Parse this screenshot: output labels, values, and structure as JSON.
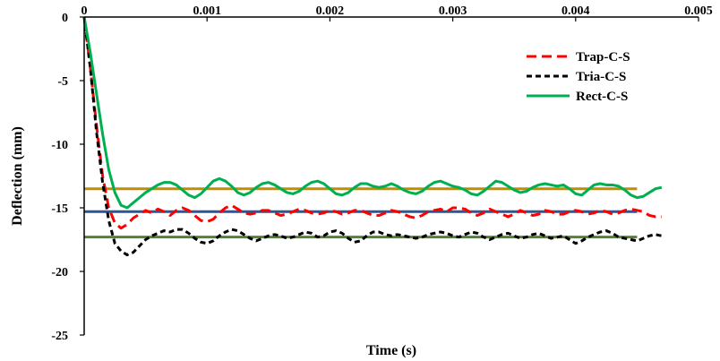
{
  "chart_data": {
    "type": "line",
    "title": "",
    "xlabel": "Time (s)",
    "ylabel": "Deflection (mm)",
    "xlim": [
      0,
      0.005
    ],
    "ylim": [
      -25,
      0
    ],
    "x_ticks": [
      0,
      0.001,
      0.002,
      0.003,
      0.004,
      0.005
    ],
    "x_tick_labels": [
      "0",
      "0.001",
      "0.002",
      "0.003",
      "0.004",
      "0.005"
    ],
    "y_ticks": [
      0,
      -5,
      -10,
      -15,
      -20,
      -25
    ],
    "y_tick_labels": [
      "0",
      "-5",
      "-10",
      "-15",
      "-20",
      "-25"
    ],
    "x_axis_position": "top",
    "grid": false,
    "legend_position": "top-right",
    "series": [
      {
        "name": "Trap-C-S",
        "color": "#ff0000",
        "style": "dashed",
        "points": [
          [
            0,
            0
          ],
          [
            5e-05,
            -4
          ],
          [
            0.0001,
            -8.5
          ],
          [
            0.00015,
            -12.5
          ],
          [
            0.0002,
            -15
          ],
          [
            0.00025,
            -16.2
          ],
          [
            0.0003,
            -16.6
          ],
          [
            0.00035,
            -16.3
          ],
          [
            0.0004,
            -15.8
          ],
          [
            0.00045,
            -15.5
          ],
          [
            0.0005,
            -15.2
          ],
          [
            0.00055,
            -15.4
          ],
          [
            0.0006,
            -15.1
          ],
          [
            0.00065,
            -15.3
          ],
          [
            0.0007,
            -15.6
          ],
          [
            0.00075,
            -15.2
          ],
          [
            0.0008,
            -15.0
          ],
          [
            0.00085,
            -15.2
          ],
          [
            0.0009,
            -15.6
          ],
          [
            0.00095,
            -16.0
          ],
          [
            0.001,
            -16.1
          ],
          [
            0.00105,
            -15.9
          ],
          [
            0.0011,
            -15.4
          ],
          [
            0.00115,
            -15.0
          ],
          [
            0.0012,
            -14.8
          ],
          [
            0.00125,
            -15.1
          ],
          [
            0.0013,
            -15.4
          ],
          [
            0.00135,
            -15.5
          ],
          [
            0.0014,
            -15.4
          ],
          [
            0.00145,
            -15.2
          ],
          [
            0.0015,
            -15.2
          ],
          [
            0.00155,
            -15.4
          ],
          [
            0.0016,
            -15.6
          ],
          [
            0.00165,
            -15.5
          ],
          [
            0.0017,
            -15.3
          ],
          [
            0.00175,
            -15.1
          ],
          [
            0.0018,
            -15.2
          ],
          [
            0.00185,
            -15.4
          ],
          [
            0.0019,
            -15.5
          ],
          [
            0.00195,
            -15.4
          ],
          [
            0.002,
            -15.2
          ],
          [
            0.00205,
            -15.3
          ],
          [
            0.0021,
            -15.5
          ],
          [
            0.00215,
            -15.4
          ],
          [
            0.0022,
            -15.2
          ],
          [
            0.00225,
            -15.2
          ],
          [
            0.0023,
            -15.4
          ],
          [
            0.00235,
            -15.6
          ],
          [
            0.0024,
            -15.6
          ],
          [
            0.00245,
            -15.4
          ],
          [
            0.0025,
            -15.2
          ],
          [
            0.00255,
            -15.3
          ],
          [
            0.0026,
            -15.5
          ],
          [
            0.00265,
            -15.7
          ],
          [
            0.0027,
            -15.8
          ],
          [
            0.00275,
            -15.6
          ],
          [
            0.0028,
            -15.3
          ],
          [
            0.00285,
            -15.2
          ],
          [
            0.0029,
            -15.1
          ],
          [
            0.00295,
            -15.3
          ],
          [
            0.003,
            -15.0
          ],
          [
            0.00305,
            -15.0
          ],
          [
            0.0031,
            -15.1
          ],
          [
            0.00315,
            -15.4
          ],
          [
            0.0032,
            -15.6
          ],
          [
            0.00325,
            -15.4
          ],
          [
            0.0033,
            -15.1
          ],
          [
            0.00335,
            -15.3
          ],
          [
            0.0034,
            -15.5
          ],
          [
            0.00345,
            -15.7
          ],
          [
            0.0035,
            -15.5
          ],
          [
            0.00355,
            -15.2
          ],
          [
            0.0036,
            -15.4
          ],
          [
            0.00365,
            -15.6
          ],
          [
            0.0037,
            -15.5
          ],
          [
            0.00375,
            -15.2
          ],
          [
            0.0038,
            -15.3
          ],
          [
            0.00385,
            -15.5
          ],
          [
            0.0039,
            -15.5
          ],
          [
            0.00395,
            -15.3
          ],
          [
            0.004,
            -15.2
          ],
          [
            0.00405,
            -15.3
          ],
          [
            0.0041,
            -15.5
          ],
          [
            0.00415,
            -15.4
          ],
          [
            0.0042,
            -15.2
          ],
          [
            0.00425,
            -15.3
          ],
          [
            0.0043,
            -15.5
          ],
          [
            0.00435,
            -15.4
          ],
          [
            0.0044,
            -15.2
          ],
          [
            0.00445,
            -15.1
          ],
          [
            0.0045,
            -15.2
          ],
          [
            0.00455,
            -15.3
          ],
          [
            0.0046,
            -15.6
          ],
          [
            0.00465,
            -15.7
          ],
          [
            0.0047,
            -15.7
          ]
        ]
      },
      {
        "name": "Tria-C-S",
        "color": "#000000",
        "style": "dashed",
        "points": [
          [
            0,
            0
          ],
          [
            5e-05,
            -4
          ],
          [
            0.0001,
            -9
          ],
          [
            0.00015,
            -13
          ],
          [
            0.0002,
            -16
          ],
          [
            0.00025,
            -17.8
          ],
          [
            0.0003,
            -18.4
          ],
          [
            0.00035,
            -18.7
          ],
          [
            0.0004,
            -18.5
          ],
          [
            0.00045,
            -18.0
          ],
          [
            0.0005,
            -17.5
          ],
          [
            0.00055,
            -17.2
          ],
          [
            0.0006,
            -17.0
          ],
          [
            0.00065,
            -16.8
          ],
          [
            0.0007,
            -16.9
          ],
          [
            0.00075,
            -16.7
          ],
          [
            0.0008,
            -16.7
          ],
          [
            0.00085,
            -17.0
          ],
          [
            0.0009,
            -17.4
          ],
          [
            0.00095,
            -17.7
          ],
          [
            0.001,
            -17.8
          ],
          [
            0.00105,
            -17.6
          ],
          [
            0.0011,
            -17.2
          ],
          [
            0.00115,
            -16.9
          ],
          [
            0.0012,
            -16.7
          ],
          [
            0.00125,
            -16.8
          ],
          [
            0.0013,
            -17.1
          ],
          [
            0.00135,
            -17.4
          ],
          [
            0.0014,
            -17.6
          ],
          [
            0.00145,
            -17.4
          ],
          [
            0.0015,
            -17.2
          ],
          [
            0.00155,
            -17.1
          ],
          [
            0.0016,
            -17.2
          ],
          [
            0.00165,
            -17.4
          ],
          [
            0.0017,
            -17.3
          ],
          [
            0.00175,
            -17.1
          ],
          [
            0.0018,
            -16.9
          ],
          [
            0.00185,
            -17.0
          ],
          [
            0.0019,
            -17.3
          ],
          [
            0.00195,
            -17.2
          ],
          [
            0.002,
            -16.9
          ],
          [
            0.00205,
            -16.8
          ],
          [
            0.0021,
            -17.0
          ],
          [
            0.00215,
            -17.4
          ],
          [
            0.0022,
            -17.7
          ],
          [
            0.00225,
            -17.6
          ],
          [
            0.0023,
            -17.2
          ],
          [
            0.00235,
            -16.9
          ],
          [
            0.0024,
            -16.9
          ],
          [
            0.00245,
            -17.1
          ],
          [
            0.0025,
            -17.2
          ],
          [
            0.00255,
            -17.1
          ],
          [
            0.0026,
            -17.2
          ],
          [
            0.00265,
            -17.3
          ],
          [
            0.0027,
            -17.4
          ],
          [
            0.00275,
            -17.3
          ],
          [
            0.0028,
            -17.1
          ],
          [
            0.00285,
            -17.0
          ],
          [
            0.0029,
            -16.9
          ],
          [
            0.00295,
            -17.0
          ],
          [
            0.003,
            -17.2
          ],
          [
            0.00305,
            -17.3
          ],
          [
            0.0031,
            -17.1
          ],
          [
            0.00315,
            -16.9
          ],
          [
            0.0032,
            -17.0
          ],
          [
            0.00325,
            -17.3
          ],
          [
            0.0033,
            -17.5
          ],
          [
            0.00335,
            -17.3
          ],
          [
            0.0034,
            -17.1
          ],
          [
            0.00345,
            -17.0
          ],
          [
            0.0035,
            -17.2
          ],
          [
            0.00355,
            -17.4
          ],
          [
            0.0036,
            -17.3
          ],
          [
            0.00365,
            -17.1
          ],
          [
            0.0037,
            -17.0
          ],
          [
            0.00375,
            -17.2
          ],
          [
            0.0038,
            -17.4
          ],
          [
            0.00385,
            -17.3
          ],
          [
            0.0039,
            -17.2
          ],
          [
            0.00395,
            -17.5
          ],
          [
            0.004,
            -17.8
          ],
          [
            0.00405,
            -17.6
          ],
          [
            0.0041,
            -17.3
          ],
          [
            0.00415,
            -17.1
          ],
          [
            0.0042,
            -16.9
          ],
          [
            0.00425,
            -16.8
          ],
          [
            0.0043,
            -17.0
          ],
          [
            0.00435,
            -17.3
          ],
          [
            0.0044,
            -17.4
          ],
          [
            0.00445,
            -17.5
          ],
          [
            0.0045,
            -17.6
          ],
          [
            0.00455,
            -17.4
          ],
          [
            0.0046,
            -17.2
          ],
          [
            0.00465,
            -17.1
          ],
          [
            0.0047,
            -17.2
          ]
        ]
      },
      {
        "name": "Rect-C-S",
        "color": "#00b050",
        "style": "solid",
        "points": [
          [
            0,
            0
          ],
          [
            5e-05,
            -2.8
          ],
          [
            0.0001,
            -6
          ],
          [
            0.00015,
            -9.2
          ],
          [
            0.0002,
            -12
          ],
          [
            0.00025,
            -13.8
          ],
          [
            0.0003,
            -14.8
          ],
          [
            0.00035,
            -15.0
          ],
          [
            0.0004,
            -14.6
          ],
          [
            0.00045,
            -14.2
          ],
          [
            0.0005,
            -13.8
          ],
          [
            0.00055,
            -13.5
          ],
          [
            0.0006,
            -13.2
          ],
          [
            0.00065,
            -13.0
          ],
          [
            0.0007,
            -13.0
          ],
          [
            0.00075,
            -13.2
          ],
          [
            0.0008,
            -13.6
          ],
          [
            0.00085,
            -14.0
          ],
          [
            0.0009,
            -14.2
          ],
          [
            0.00095,
            -13.9
          ],
          [
            0.001,
            -13.4
          ],
          [
            0.00105,
            -12.9
          ],
          [
            0.0011,
            -12.7
          ],
          [
            0.00115,
            -12.9
          ],
          [
            0.0012,
            -13.3
          ],
          [
            0.00125,
            -13.8
          ],
          [
            0.0013,
            -14.0
          ],
          [
            0.00135,
            -13.8
          ],
          [
            0.0014,
            -13.4
          ],
          [
            0.00145,
            -13.1
          ],
          [
            0.0015,
            -13.0
          ],
          [
            0.00155,
            -13.2
          ],
          [
            0.0016,
            -13.5
          ],
          [
            0.00165,
            -13.8
          ],
          [
            0.0017,
            -13.9
          ],
          [
            0.00175,
            -13.7
          ],
          [
            0.0018,
            -13.3
          ],
          [
            0.00185,
            -13.0
          ],
          [
            0.0019,
            -12.9
          ],
          [
            0.00195,
            -13.1
          ],
          [
            0.002,
            -13.5
          ],
          [
            0.00205,
            -13.9
          ],
          [
            0.0021,
            -14.0
          ],
          [
            0.00215,
            -13.8
          ],
          [
            0.0022,
            -13.4
          ],
          [
            0.00225,
            -13.1
          ],
          [
            0.0023,
            -13.1
          ],
          [
            0.00235,
            -13.3
          ],
          [
            0.0024,
            -13.4
          ],
          [
            0.00245,
            -13.3
          ],
          [
            0.0025,
            -13.1
          ],
          [
            0.00255,
            -13.3
          ],
          [
            0.0026,
            -13.6
          ],
          [
            0.00265,
            -13.8
          ],
          [
            0.0027,
            -13.9
          ],
          [
            0.00275,
            -13.7
          ],
          [
            0.0028,
            -13.3
          ],
          [
            0.00285,
            -13.0
          ],
          [
            0.0029,
            -12.9
          ],
          [
            0.00295,
            -13.1
          ],
          [
            0.003,
            -13.3
          ],
          [
            0.00305,
            -13.4
          ],
          [
            0.0031,
            -13.6
          ],
          [
            0.00315,
            -13.9
          ],
          [
            0.0032,
            -14.0
          ],
          [
            0.00325,
            -13.7
          ],
          [
            0.0033,
            -13.3
          ],
          [
            0.00335,
            -12.9
          ],
          [
            0.0034,
            -13.0
          ],
          [
            0.00345,
            -13.3
          ],
          [
            0.0035,
            -13.6
          ],
          [
            0.00355,
            -13.8
          ],
          [
            0.0036,
            -13.7
          ],
          [
            0.00365,
            -13.4
          ],
          [
            0.0037,
            -13.2
          ],
          [
            0.00375,
            -13.1
          ],
          [
            0.0038,
            -13.2
          ],
          [
            0.00385,
            -13.3
          ],
          [
            0.0039,
            -13.2
          ],
          [
            0.00395,
            -13.5
          ],
          [
            0.004,
            -13.9
          ],
          [
            0.00405,
            -14.0
          ],
          [
            0.0041,
            -13.6
          ],
          [
            0.00415,
            -13.2
          ],
          [
            0.0042,
            -13.1
          ],
          [
            0.00425,
            -13.2
          ],
          [
            0.0043,
            -13.2
          ],
          [
            0.00435,
            -13.3
          ],
          [
            0.0044,
            -13.6
          ],
          [
            0.00445,
            -14.0
          ],
          [
            0.0045,
            -14.2
          ],
          [
            0.00455,
            -14.1
          ],
          [
            0.0046,
            -13.8
          ],
          [
            0.00465,
            -13.5
          ],
          [
            0.0047,
            -13.4
          ]
        ]
      }
    ],
    "reference_lines": [
      {
        "y": -13.5,
        "x_range": [
          0,
          0.0045
        ],
        "color": "#bf8f00"
      },
      {
        "y": -15.3,
        "x_range": [
          0,
          0.0045
        ],
        "color": "#2f5597"
      },
      {
        "y": -17.3,
        "x_range": [
          0,
          0.0045
        ],
        "color": "#548235"
      }
    ]
  }
}
